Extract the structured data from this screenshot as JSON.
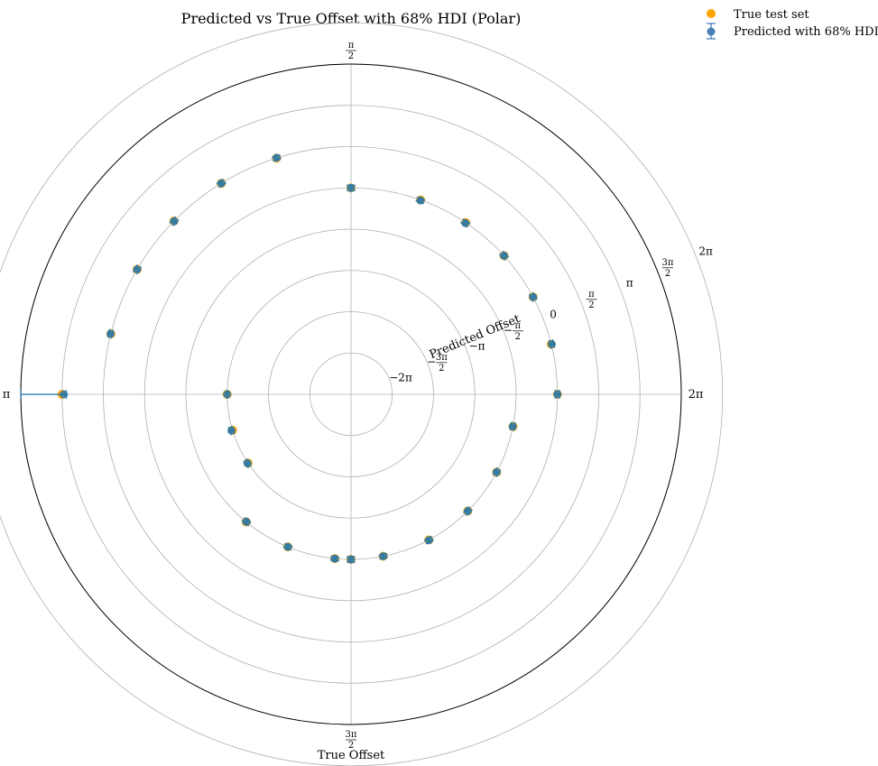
{
  "chart_data": {
    "type": "scatter",
    "projection": "polar",
    "title": "Predicted vs True Offset with 68% HDI (Polar)",
    "xlabel": "True Offset",
    "ylabel": "Predicted Offset",
    "legend": {
      "placement": "top-right",
      "entries": [
        "True test set",
        "Predicted with 68% HDI"
      ]
    },
    "colors": {
      "true": "#ffa500",
      "predicted": "#1f77b4",
      "grid": "#b0b0b0"
    },
    "grid": true,
    "theta_ticks": [
      {
        "value": 0,
        "label": "2π"
      },
      {
        "value": 1.5708,
        "label": "π/2"
      },
      {
        "value": 3.1416,
        "label": "π"
      },
      {
        "value": 4.7124,
        "label": "3π/2"
      }
    ],
    "r_ticks": [
      {
        "value": -6.2832,
        "label": "−2π"
      },
      {
        "value": -4.7124,
        "label": "−3π/2"
      },
      {
        "value": -3.1416,
        "label": "−π"
      },
      {
        "value": -1.5708,
        "label": "−π/2"
      },
      {
        "value": 0,
        "label": "0"
      },
      {
        "value": 1.5708,
        "label": "π/2"
      },
      {
        "value": 3.1416,
        "label": "π"
      },
      {
        "value": 4.7124,
        "label": "3π/2"
      },
      {
        "value": 6.2832,
        "label": "2π"
      }
    ],
    "r_range": [
      -7.854,
      4.712
    ],
    "points": [
      {
        "theta": 0.0,
        "r_true": 0.0,
        "r_pred": 0.0,
        "hdi_low": -0.08,
        "hdi_high": 0.08
      },
      {
        "theta": 0.245,
        "r_true": 0.0,
        "r_pred": 0.02,
        "hdi_low": -0.05,
        "hdi_high": 0.09
      },
      {
        "theta": 0.491,
        "r_true": 0.0,
        "r_pred": 0.0,
        "hdi_low": -0.08,
        "hdi_high": 0.08
      },
      {
        "theta": 0.736,
        "r_true": 0.0,
        "r_pred": 0.0,
        "hdi_low": -0.08,
        "hdi_high": 0.08
      },
      {
        "theta": 0.982,
        "r_true": 0.0,
        "r_pred": -0.02,
        "hdi_low": -0.1,
        "hdi_high": 0.06
      },
      {
        "theta": 1.227,
        "r_true": 0.0,
        "r_pred": -0.02,
        "hdi_low": -0.09,
        "hdi_high": 0.05
      },
      {
        "theta": 1.571,
        "r_true": 0.0,
        "r_pred": 0.0,
        "hdi_low": -0.1,
        "hdi_high": 0.1
      },
      {
        "theta": 1.876,
        "r_true": 1.57,
        "r_pred": 1.58,
        "hdi_low": 1.51,
        "hdi_high": 1.65
      },
      {
        "theta": 2.122,
        "r_true": 1.57,
        "r_pred": 1.57,
        "hdi_low": 1.49,
        "hdi_high": 1.65
      },
      {
        "theta": 2.367,
        "r_true": 1.57,
        "r_pred": 1.56,
        "hdi_low": 1.48,
        "hdi_high": 1.64
      },
      {
        "theta": 2.613,
        "r_true": 1.57,
        "r_pred": 1.57,
        "hdi_low": 1.49,
        "hdi_high": 1.65
      },
      {
        "theta": 2.895,
        "r_true": 1.57,
        "r_pred": 1.58,
        "hdi_low": 1.51,
        "hdi_high": 1.65
      },
      {
        "theta": 3.142,
        "r_true": 3.14,
        "r_pred": 3.07,
        "hdi_low": 2.98,
        "hdi_high": 4.71
      },
      {
        "theta": 3.142,
        "r_true": -3.14,
        "r_pred": -3.14,
        "hdi_low": -3.14,
        "hdi_high": -3.14
      },
      {
        "theta": 3.436,
        "r_true": -3.14,
        "r_pred": -3.1,
        "hdi_low": -3.16,
        "hdi_high": -3.04
      },
      {
        "theta": 3.73,
        "r_true": -3.14,
        "r_pred": -3.12,
        "hdi_low": -3.19,
        "hdi_high": -3.05
      },
      {
        "theta": 4.025,
        "r_true": -1.57,
        "r_pred": -1.58,
        "hdi_low": -1.65,
        "hdi_high": -1.51
      },
      {
        "theta": 4.32,
        "r_true": -1.57,
        "r_pred": -1.57,
        "hdi_low": -1.64,
        "hdi_high": -1.5
      },
      {
        "theta": 4.614,
        "r_true": -1.57,
        "r_pred": -1.57,
        "hdi_low": -1.64,
        "hdi_high": -1.5
      },
      {
        "theta": 4.712,
        "r_true": -1.57,
        "r_pred": -1.57,
        "hdi_low": -1.67,
        "hdi_high": -1.47
      },
      {
        "theta": 4.909,
        "r_true": -1.57,
        "r_pred": -1.57,
        "hdi_low": -1.64,
        "hdi_high": -1.5
      },
      {
        "theta": 5.203,
        "r_true": -1.57,
        "r_pred": -1.56,
        "hdi_low": -1.63,
        "hdi_high": -1.49
      },
      {
        "theta": 5.498,
        "r_true": -1.57,
        "r_pred": -1.57,
        "hdi_low": -1.64,
        "hdi_high": -1.5
      },
      {
        "theta": 5.792,
        "r_true": -1.57,
        "r_pred": -1.57,
        "hdi_low": -1.64,
        "hdi_high": -1.5
      },
      {
        "theta": 6.087,
        "r_true": -1.57,
        "r_pred": -1.58,
        "hdi_low": -1.65,
        "hdi_high": -1.51
      }
    ]
  }
}
